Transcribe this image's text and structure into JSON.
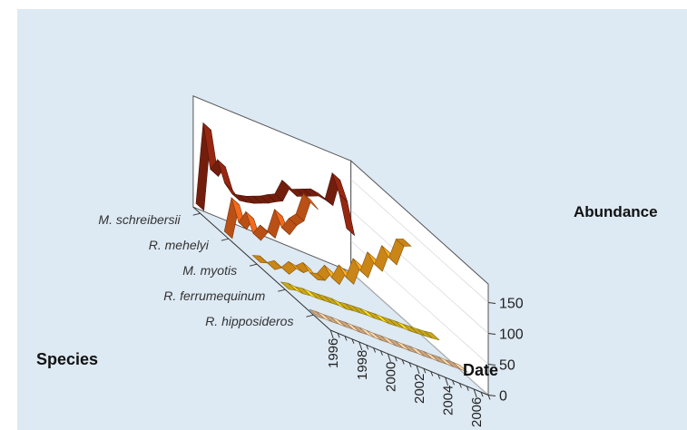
{
  "colors": {
    "background": "#dde9f3",
    "wall": "#ffffff",
    "grid": "#555555"
  },
  "chart_data": {
    "type": "3d-ribbon-line",
    "xlabel": "Date",
    "ylabel": "Species",
    "zlabel": "Abundance",
    "x_ticks": [
      "1996",
      "1998",
      "2000",
      "2002",
      "2004",
      "2006"
    ],
    "z_ticks": [
      "0",
      "50",
      "100",
      "150"
    ],
    "xlim": [
      1996,
      2007
    ],
    "zlim": [
      0,
      150
    ],
    "x": [
      1996,
      1996.5,
      1997,
      1997.5,
      1998,
      1998.5,
      1999,
      1999.5,
      2000,
      2000.5,
      2001,
      2001.5,
      2002,
      2002.5,
      2003,
      2003.5,
      2004,
      2004.5,
      2005,
      2005.5,
      2006,
      2006.5
    ],
    "series": [
      {
        "name": "M. schreibersii",
        "color": "#8c2410",
        "values": [
          10,
          145,
          75,
          95,
          62,
          50,
          52,
          55,
          60,
          65,
          72,
          78,
          105,
          95,
          100,
          105,
          110,
          108,
          104,
          150,
          120,
          70
        ]
      },
      {
        "name": "R. mehelyi",
        "color": "#e2621a",
        "values": [
          6,
          65,
          30,
          52,
          22,
          40,
          35,
          75,
          50,
          70,
          82,
          120,
          110,
          null,
          null,
          null,
          null,
          null,
          null,
          null,
          null,
          null
        ]
      },
      {
        "name": "M. myotis",
        "color": "#f6a21c",
        "values": [
          8,
          12,
          6,
          14,
          8,
          22,
          20,
          30,
          18,
          22,
          40,
          25,
          50,
          35,
          70,
          55,
          90,
          75,
          110,
          95,
          130,
          135
        ]
      },
      {
        "name": "R. ferrumequinum",
        "color": "#f5cc1e",
        "values": [
          6,
          9,
          8,
          10,
          10,
          11,
          12,
          13,
          12,
          14,
          15,
          16,
          16,
          17,
          17,
          18,
          19,
          19,
          20,
          21,
          22,
          24
        ]
      },
      {
        "name": "R. hipposideros",
        "color": "#f9c99a",
        "values": [
          3,
          4,
          4,
          5,
          5,
          6,
          6,
          7,
          7,
          7,
          8,
          8,
          9,
          9,
          10,
          10,
          11,
          11,
          12,
          12,
          13,
          13
        ]
      }
    ]
  }
}
